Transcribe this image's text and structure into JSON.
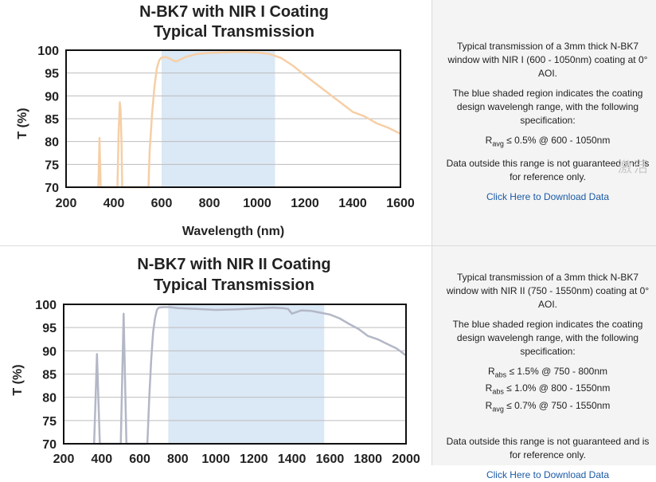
{
  "charts": [
    {
      "title_line1": "N-BK7 with NIR I Coating",
      "title_line2": "Typical Transmission",
      "ylabel": "T (%)",
      "xlabel": "Wavelength (nm)",
      "xticks": [
        "200",
        "400",
        "600",
        "800",
        "1000",
        "1200",
        "1400",
        "1600"
      ],
      "yticks": [
        "100",
        "95",
        "90",
        "85",
        "80",
        "75",
        "70"
      ],
      "color": "#f6cfa6",
      "band_color": "#dbe8f5"
    },
    {
      "title_line1": "N-BK7 with NIR II Coating",
      "title_line2": "Typical Transmission",
      "ylabel": "T (%)",
      "xlabel": "",
      "xticks": [
        "200",
        "400",
        "600",
        "800",
        "1000",
        "1200",
        "1400",
        "1600",
        "1800",
        "2000"
      ],
      "yticks": [
        "100",
        "95",
        "90",
        "85",
        "80",
        "75",
        "70"
      ],
      "color": "#b3b7c6",
      "band_color": "#dbe8f5"
    }
  ],
  "info": [
    {
      "p1": "Typical transmission of a 3mm thick N-BK7 window with NIR I (600 - 1050nm) coating at 0° AOI.",
      "p2": "The blue shaded region indicates the coating design wavelengh range, with the following specification:",
      "specs": [
        {
          "sym": "R",
          "sub": "avg",
          "text": " ≤ 0.5% @ 600 - 1050nm"
        }
      ],
      "p3": "Data outside this range is not guaranteed and is for reference only.",
      "link": "Click Here to Download Data"
    },
    {
      "p1": "Typical transmission of a 3mm thick N-BK7 window with NIR II (750 - 1550nm) coating at 0° AOI.",
      "p2": "The blue shaded region indicates the coating design wavelengh range, with the following specification:",
      "specs": [
        {
          "sym": "R",
          "sub": "abs",
          "text": " ≤ 1.5% @ 750 - 800nm"
        },
        {
          "sym": "R",
          "sub": "abs",
          "text": " ≤ 1.0% @ 800 - 1550nm"
        },
        {
          "sym": "R",
          "sub": "avg",
          "text": " ≤ 0.7% @ 750 - 1550nm"
        }
      ],
      "p3": "Data outside this range is not guaranteed and is for reference only.",
      "link": "Click Here to Download Data"
    }
  ],
  "watermark": "激活",
  "chart_data": [
    {
      "type": "line",
      "title": "N-BK7 with NIR I Coating Typical Transmission",
      "xlabel": "Wavelength (nm)",
      "ylabel": "T (%)",
      "xlim": [
        200,
        1600
      ],
      "ylim": [
        70,
        100
      ],
      "grid": true,
      "shaded_range": [
        600,
        1075
      ],
      "series": [
        {
          "x": [
            335,
            338,
            340,
            342,
            345,
            415,
            420,
            425,
            428,
            432,
            435,
            440,
            545,
            550,
            560,
            570,
            580,
            590,
            600,
            620,
            640,
            660,
            680,
            700,
            750,
            800,
            850,
            900,
            950,
            1000,
            1050,
            1100,
            1150,
            1200,
            1250,
            1300,
            1350,
            1400,
            1450,
            1500,
            1550,
            1600
          ],
          "y": [
            70,
            76,
            80.8,
            76,
            70,
            70,
            82,
            88.6,
            87,
            80,
            70,
            70,
            70,
            78,
            86,
            92,
            96,
            97.8,
            98.4,
            98.5,
            98,
            97.5,
            98,
            98.5,
            99.2,
            99.4,
            99.5,
            99.6,
            99.6,
            99.5,
            99.2,
            98.3,
            96.6,
            94.5,
            92.5,
            90.5,
            88.5,
            86.5,
            85.5,
            84,
            83,
            81.7
          ]
        }
      ]
    },
    {
      "type": "line",
      "title": "N-BK7 with NIR II Coating Typical Transmission",
      "xlabel": "",
      "ylabel": "T (%)",
      "xlim": [
        200,
        2000
      ],
      "ylim": [
        70,
        100
      ],
      "grid": true,
      "shaded_range": [
        750,
        1570
      ],
      "series": [
        {
          "x": [
            360,
            368,
            375,
            382,
            390,
            500,
            508,
            515,
            522,
            530,
            640,
            650,
            660,
            670,
            680,
            690,
            700,
            720,
            760,
            800,
            900,
            1000,
            1100,
            1200,
            1300,
            1350,
            1380,
            1400,
            1450,
            1500,
            1550,
            1600,
            1650,
            1700,
            1750,
            1800,
            1850,
            1900,
            1950,
            2000
          ],
          "y": [
            70,
            80,
            89.3,
            80,
            70,
            70,
            85,
            98,
            85,
            70,
            70,
            80,
            88,
            94,
            97,
            98.8,
            99.3,
            99.4,
            99.4,
            99.2,
            99,
            98.8,
            98.9,
            99.1,
            99.3,
            99.2,
            99,
            98,
            98.7,
            98.6,
            98.2,
            97.8,
            97,
            95.8,
            94.7,
            93.2,
            92.5,
            91.5,
            90.5,
            89
          ]
        }
      ]
    }
  ]
}
